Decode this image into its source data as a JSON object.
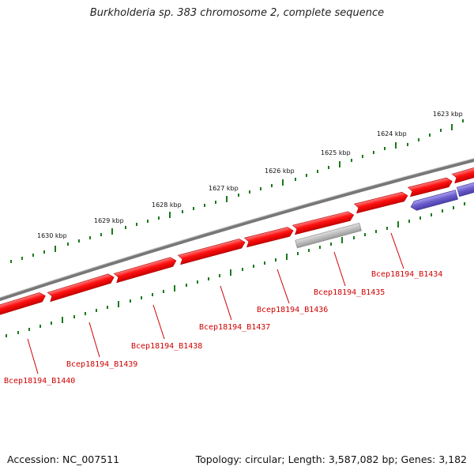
{
  "title": "Burkholderia sp. 383 chromosome 2, complete sequence",
  "footer": {
    "accession": "Accession: NC_007511",
    "summary": "Topology: circular; Length: 3,587,082 bp; Genes: 3,182"
  },
  "colors": {
    "backbone": "#7a7a7a",
    "forward_gene": "#ff0000",
    "reverse_gene": "#6b5ccc",
    "other_gene": "#b8b8b8",
    "tick": "#1a7a1a",
    "label": "#d00000"
  },
  "kbp_labels": [
    "1623 kbp",
    "1624 kbp",
    "1625 kbp",
    "1626 kbp",
    "1627 kbp",
    "1628 kbp",
    "1629 kbp",
    "1630 kbp"
  ],
  "gene_labels": [
    "Bcep18194_B1434",
    "Bcep18194_B1435",
    "Bcep18194_B1436",
    "Bcep18194_B1437",
    "Bcep18194_B1438",
    "Bcep18194_B1439",
    "Bcep18194_B1440"
  ]
}
